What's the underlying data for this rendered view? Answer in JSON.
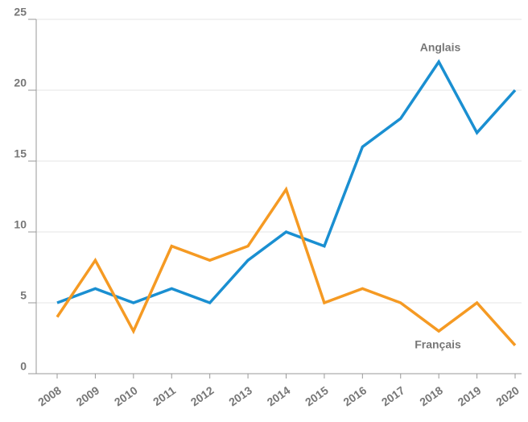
{
  "chart_data": {
    "type": "line",
    "categories": [
      "2008",
      "2009",
      "2010",
      "2011",
      "2012",
      "2013",
      "2014",
      "2015",
      "2016",
      "2017",
      "2018",
      "2019",
      "2020"
    ],
    "series": [
      {
        "name": "Anglais",
        "color": "#1a8fd1",
        "values": [
          5,
          6,
          5,
          6,
          5,
          8,
          10,
          9,
          16,
          18,
          22,
          17,
          20
        ]
      },
      {
        "name": "Français",
        "color": "#f59a23",
        "values": [
          4,
          8,
          3,
          9,
          8,
          9,
          13,
          5,
          6,
          5,
          3,
          5,
          2
        ]
      }
    ],
    "ylim": [
      0,
      25
    ],
    "yticks": [
      0,
      5,
      10,
      15,
      20,
      25
    ],
    "grid": true
  }
}
